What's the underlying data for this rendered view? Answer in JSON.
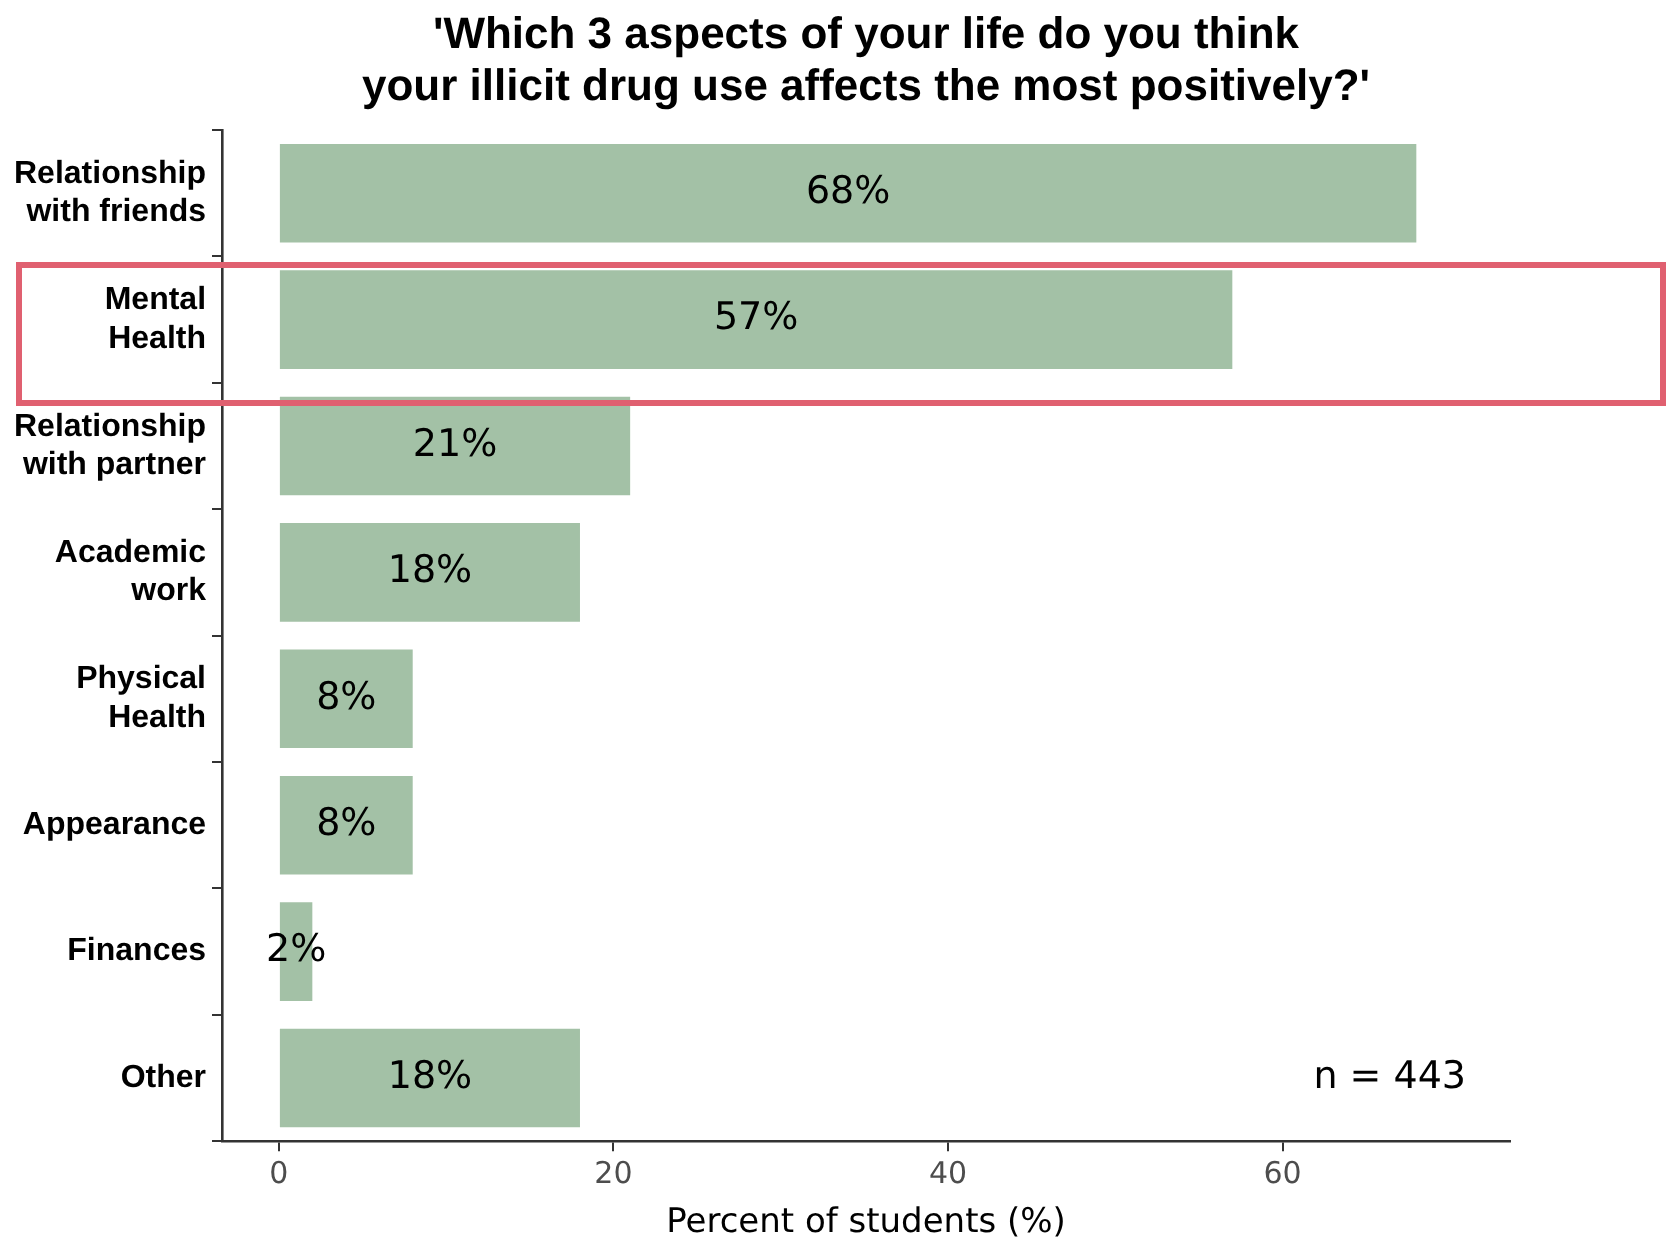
{
  "chart_data": {
    "type": "bar",
    "orientation": "horizontal",
    "title": "'Which 3 aspects of your life do you think\nyour illicit drug use affects the most positively?'",
    "xlabel": "Percent of students (%)",
    "categories": [
      "Relationship\nwith friends",
      "Mental\nHealth",
      "Relationship\nwith partner",
      "Academic\nwork",
      "Physical\nHealth",
      "Appearance",
      "Finances",
      "Other"
    ],
    "values": [
      68,
      57,
      21,
      18,
      8,
      8,
      2,
      18
    ],
    "value_labels": [
      "68%",
      "57%",
      "21%",
      "18%",
      "8%",
      "8%",
      "2%",
      "18%"
    ],
    "color": "#a3c1a6",
    "xlim": [
      -3.4,
      73.6
    ],
    "xticks": [
      0,
      20,
      40,
      60
    ],
    "grid": false,
    "legend": false,
    "annotations": [
      "n = 443"
    ]
  }
}
